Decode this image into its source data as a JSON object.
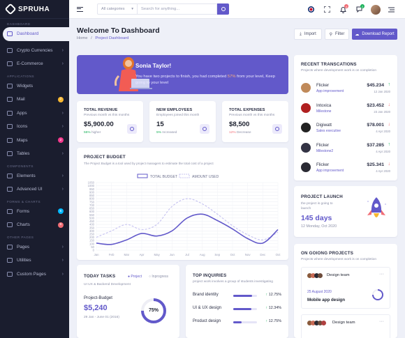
{
  "app": {
    "name": "SPRUHA"
  },
  "sidebar": {
    "sections": [
      {
        "title": "DASHBOARD",
        "items": [
          {
            "label": "Dashboard",
            "active": true
          }
        ]
      },
      {
        "title": "",
        "items": [
          {
            "label": "Crypto Currencies",
            "chevron": true
          },
          {
            "label": "E-Commerce",
            "chevron": true
          }
        ]
      },
      {
        "title": "APPLICATIONS",
        "items": [
          {
            "label": "Widgets"
          },
          {
            "label": "Mail",
            "badge": "2",
            "badge_color": "#f7b731"
          },
          {
            "label": "Apps",
            "chevron": true
          },
          {
            "label": "Icons",
            "chevron": true
          },
          {
            "label": "Maps",
            "badge": "2",
            "badge_color": "#f1388b"
          },
          {
            "label": "Tables",
            "chevron": true
          }
        ]
      },
      {
        "title": "COMPONENTS",
        "items": [
          {
            "label": "Elements",
            "chevron": true
          },
          {
            "label": "Advanced UI",
            "chevron": true
          }
        ]
      },
      {
        "title": "FORMS & CHARTS",
        "items": [
          {
            "label": "Forms",
            "badge": "6",
            "badge_color": "#01b8ff"
          },
          {
            "label": "Charts",
            "badge": "6",
            "badge_color": "#f16d75"
          }
        ]
      },
      {
        "title": "OTHER PAGES",
        "items": [
          {
            "label": "Pages",
            "chevron": true
          },
          {
            "label": "Utilities",
            "chevron": true
          },
          {
            "label": "Custom Pages",
            "chevron": true
          }
        ]
      }
    ]
  },
  "topbar": {
    "category": "All categories",
    "search_placeholder": "Search for anything...",
    "notif_count": "4",
    "chat_count": "2"
  },
  "header": {
    "title": "Welcome To Dashboard",
    "crumb_home": "Home",
    "crumb_sep": "/",
    "crumb_current": "Project Dashboard",
    "import_label": "Import",
    "filter_label": "Filter",
    "download_label": "Download Report"
  },
  "banner": {
    "greeting": "Sonia Taylor!",
    "msg_before": "You have two projects to finish, you had completed ",
    "msg_pct": "57%",
    "msg_after": " from your level, Keep going to your level"
  },
  "stats": [
    {
      "title": "TOTAL REVENUE",
      "sub": "Previous month vs this months",
      "value": "$5,900.00",
      "change": "55%",
      "change_word": "higher",
      "color": "#19b159"
    },
    {
      "title": "NEW EMPLOYEES",
      "sub": "Employees joined this month",
      "value": "15",
      "change": "5%",
      "change_word": "Increased",
      "color": "#19b159"
    },
    {
      "title": "TOTAL EXPENSES",
      "sub": "Previous month vs this months",
      "value": "$8,500",
      "change": "12%",
      "change_word": "Decrease",
      "color": "#f16d75"
    }
  ],
  "budget": {
    "title": "PROJECT BUDGET",
    "sub": "The Project Budget is a tool used by project managers to estimate the total cost of a project"
  },
  "chart_data": {
    "type": "line",
    "categories": [
      "Jan",
      "Feb",
      "Mar",
      "Apr",
      "May",
      "Jun",
      "Jul",
      "Aug",
      "Sep",
      "Oct",
      "Nov",
      "Dec",
      "Oct"
    ],
    "series": [
      {
        "name": "TOTAL BUDGET",
        "values": [
          110,
          90,
          160,
          260,
          220,
          300,
          500,
          560,
          460,
          330,
          180,
          110,
          320
        ],
        "color": "#6259ca"
      },
      {
        "name": "AMOUNT USED",
        "values": [
          200,
          300,
          400,
          320,
          400,
          680,
          800,
          720,
          560,
          380,
          240,
          160,
          280
        ],
        "color": "#c9c6f1"
      }
    ],
    "yticks": [
      "1050",
      "1000",
      "950",
      "900",
      "850",
      "800",
      "750",
      "700",
      "650",
      "600",
      "550",
      "500",
      "450",
      "400",
      "350",
      "300",
      "250",
      "200",
      "150",
      "100",
      "50",
      "0"
    ],
    "ylim": [
      0,
      1050
    ],
    "grid": true,
    "legend": "top"
  },
  "tasks": {
    "title": "TODAY TASKS",
    "legend_project": "Project",
    "legend_inprogress": "Inprogress",
    "sub": "UI UX & Backend Development",
    "label": "Project-Budget",
    "amount": "$5,240",
    "dates": "29 Jan - June 01 (2016)",
    "percent_text": "75%",
    "percent": 0.75
  },
  "inquiries": {
    "title": "TOP INQUIRIES",
    "sub": "project work involves a group of students investigating",
    "rows": [
      {
        "label": "Brand identity",
        "pct": "12.75%",
        "fill": 0.8
      },
      {
        "label": "UI & UX design",
        "pct": "12.34%",
        "fill": 0.75
      },
      {
        "label": "Product design",
        "pct": "12.75%",
        "fill": 0.35
      }
    ]
  },
  "transactions": {
    "title": "RECENT TRANSCATIONS",
    "sub": "Projects where development work is on completion",
    "rows": [
      {
        "name": "Flicker",
        "cat": "App improvement",
        "amount": "$45.234",
        "date": "12 Jan 2020",
        "dir": "up",
        "avatar": "#c08a5a"
      },
      {
        "name": "Intoxica",
        "cat": "Milestone",
        "amount": "$23.452",
        "date": "23 Jan 2020",
        "dir": "down",
        "avatar": "#b02020"
      },
      {
        "name": "Digiwatt",
        "cat": "Sales executive",
        "amount": "$78.001",
        "date": "4 Apr 2020",
        "dir": "down",
        "avatar": "#222222"
      },
      {
        "name": "Flicker",
        "cat": "Milestone2",
        "amount": "$37.285",
        "date": "4 Apr 2020",
        "dir": "up",
        "avatar": "#333344"
      },
      {
        "name": "Flicker",
        "cat": "App improvement",
        "amount": "$25.341",
        "date": "4 Apr 2020",
        "dir": "down",
        "avatar": "#2a2a33"
      }
    ]
  },
  "launch": {
    "title": "PROJECT LAUNCH",
    "sub": "the project is going to launch",
    "days": "145 days",
    "date": "12 Monday, Oct 2020"
  },
  "ongoing": {
    "title": "ON GOIONG PROJECTS",
    "sub": "Projects where development work is on completion",
    "cards": [
      {
        "team": "Design team",
        "date": "25 August 2020",
        "name": "Mobile app design"
      },
      {
        "team": "Design team"
      }
    ]
  }
}
